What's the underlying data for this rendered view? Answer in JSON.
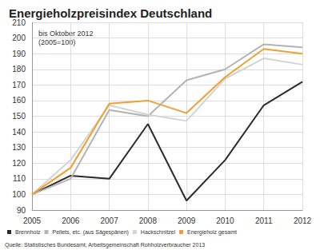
{
  "chart_data": {
    "type": "line",
    "title": "Energieholzpreisindex Deutschland",
    "subtitle": "bis Oktober 2012\n(2005=100)",
    "source": "Quelle: Statistisches Bundesamt, Arbeitsgemeinschaft Rohholzverbraucher 2013",
    "categories": [
      "2005",
      "2006",
      "2007",
      "2008",
      "2009",
      "2010",
      "2011",
      "2012"
    ],
    "series": [
      {
        "name": "Brennholz",
        "color": "#2b2b2b",
        "values": [
          100,
          112,
          110,
          145,
          96,
          122,
          157,
          172
        ]
      },
      {
        "name": "Pellets, etc. (aus Sägespänen)",
        "color": "#b3b3b3",
        "values": [
          100,
          110,
          154,
          150,
          173,
          180,
          196,
          194
        ]
      },
      {
        "name": "Hackschnitzel",
        "color": "#d4d4d4",
        "values": [
          100,
          122,
          157,
          151,
          147,
          174,
          187,
          183
        ]
      },
      {
        "name": "Energieholz gesamt",
        "color": "#f0a030",
        "values": [
          100,
          117,
          158,
          160,
          152,
          175,
          193,
          190
        ]
      }
    ],
    "ylim": [
      90,
      210
    ],
    "yticks": [
      90,
      100,
      110,
      120,
      130,
      140,
      150,
      160,
      170,
      180,
      190,
      200,
      210
    ],
    "grid": true,
    "legend": "bottom"
  }
}
